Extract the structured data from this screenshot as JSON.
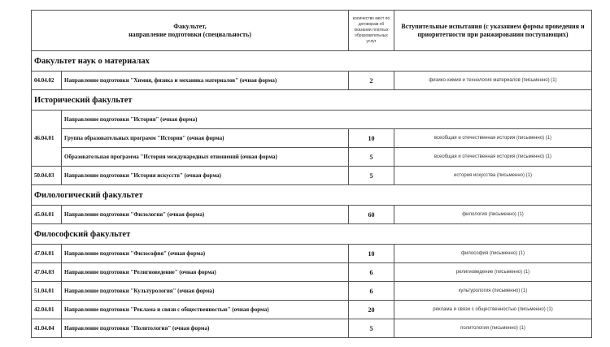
{
  "header": {
    "col1_line1": "Факультет,",
    "col1_line2": "направление подготовки (специальность)",
    "col2": "количество мест по договорам об оказании платных образовательных услуг",
    "col3": "Вступительные испытания (с указанием формы проведения и приоритетности при ранжировании поступающих)"
  },
  "sections": [
    {
      "faculty": "Факультет наук о материалах",
      "rows": [
        {
          "code": "04.04.02",
          "name": "Направление подготовки \"Химия, физика и механика материалов\" (очная форма)",
          "count": "2",
          "exam": "физико-химия и технология материалов (письменно) (1)"
        }
      ]
    },
    {
      "faculty": "Исторический факультет",
      "group": {
        "code": "46.04.01",
        "heading": "Направление подготовки \"История\" (очная форма)",
        "rows": [
          {
            "name": "Группа образовательных программ \"История\" (очная форма)",
            "count": "10",
            "exam": "всеобщая и отечественная история (письменно) (1)"
          },
          {
            "name": "Образовательная программа \"История международных отношений (очная форма)",
            "count": "5",
            "exam": "всеобщая и отечественная история (письменно) (1)"
          }
        ]
      },
      "rows": [
        {
          "code": "50.04.03",
          "name": "Направление подготовки \"История искусств\" (очная форма)",
          "count": "5",
          "exam": "история искусства (письменно) (1)"
        }
      ]
    },
    {
      "faculty": "Филологический факультет",
      "rows": [
        {
          "code": "45.04.01",
          "name": "Направление подготовки \"Филология\"  (очная форма)",
          "count": "60",
          "exam": "филология (письменно) (1)"
        }
      ]
    },
    {
      "faculty": "Философский факультет",
      "rows": [
        {
          "code": "47.04.01",
          "name": "Направление подготовки \"Философия\" (очная форма)",
          "count": "10",
          "exam": "философия (письменно) (1)"
        },
        {
          "code": "47.04.03",
          "name": "Направление подготовки \"Религиоведение\" (очная форма)",
          "count": "6",
          "exam": "религиоведение (письменно) (1)"
        },
        {
          "code": "51.04.01",
          "name": "Направление подготовки \"Культурология\" (очная форма)",
          "count": "6",
          "exam": "культурология (письменно) (1)"
        },
        {
          "code": "42.04.01",
          "name": "Направление подготовки \"Реклама и связи с общественностью\" (очная форма)",
          "count": "20",
          "exam": "реклама и связи с общественностью (письменно) (1)"
        },
        {
          "code": "41.04.04",
          "name": "Направление подготовки \"Политология\" (очная форма)",
          "count": "5",
          "exam": "политология (письменно) (1)"
        }
      ]
    }
  ]
}
